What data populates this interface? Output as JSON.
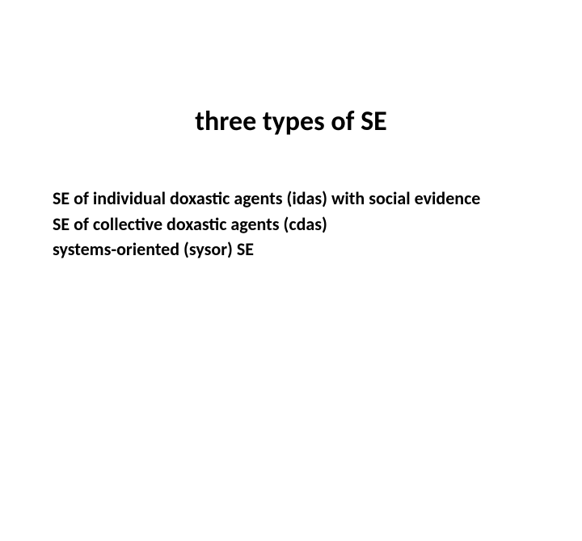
{
  "slide": {
    "title": "three types of SE",
    "lines": [
      "SE of individual doxastic agents (idas) with social evidence",
      "SE of collective doxastic agents (cdas)",
      "systems-oriented (sysor) SE"
    ],
    "style": {
      "background_color": "#ffffff",
      "title_color": "#000000",
      "title_fontsize": 34,
      "title_fontweight": 700,
      "body_color": "#000000",
      "body_fontsize": 22,
      "body_fontweight": 700,
      "font_family": "Calibri"
    }
  }
}
